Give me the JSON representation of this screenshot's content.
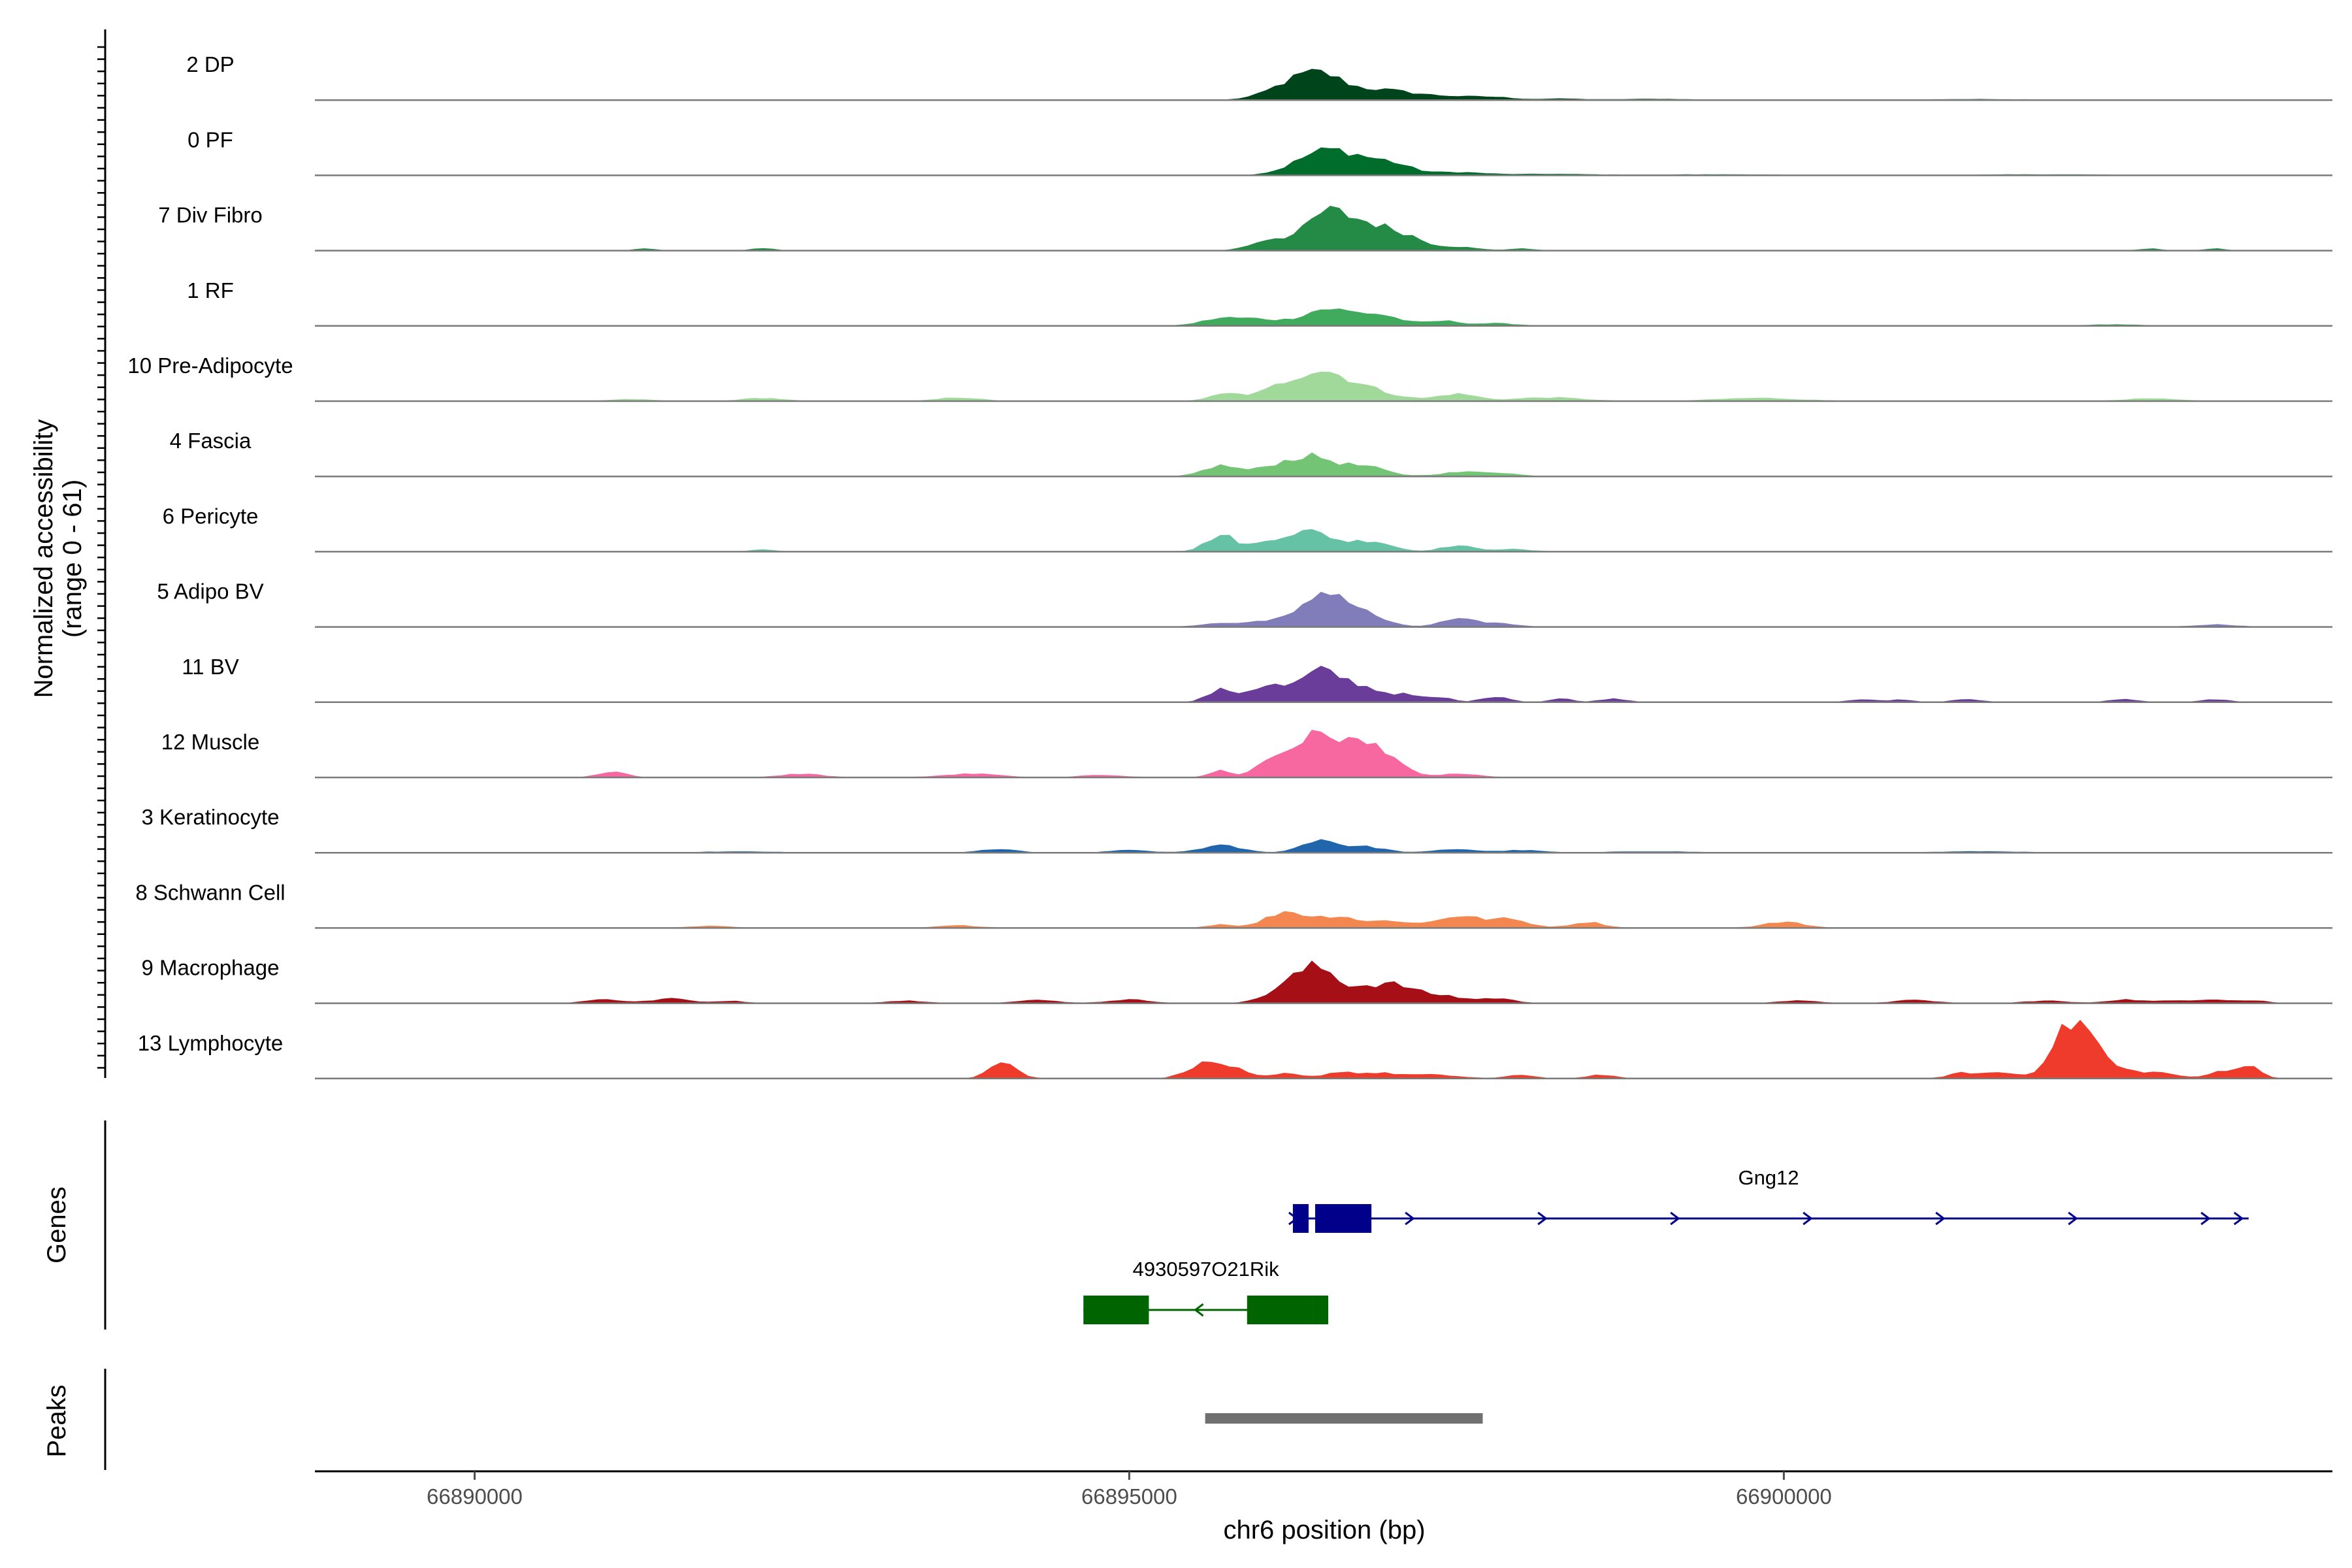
{
  "chart_data": {
    "type": "area",
    "figure": "coverage-plot",
    "ylabel_line1": "Normalized accessibility",
    "ylabel_line2": "(range 0 - 61)",
    "y_range": [
      0,
      61
    ],
    "xlabel": "chr6 position (bp)",
    "x_range": [
      66888780,
      66904190
    ],
    "x_ticks": [
      66890000,
      66895000,
      66900000
    ],
    "x_tick_labels": [
      "66890000",
      "66895000",
      "66900000"
    ],
    "series": [
      {
        "name": "2 DP",
        "color": "#00441b",
        "peaks": [
          [
            66896280,
            15,
            200
          ],
          [
            66896500,
            13,
            160
          ],
          [
            66896900,
            8,
            230
          ],
          [
            66897400,
            3,
            280
          ],
          [
            66897800,
            1.5,
            150
          ],
          [
            66898300,
            1,
            150
          ],
          [
            66899000,
            0.8,
            300
          ],
          [
            66901500,
            0.6,
            400
          ]
        ]
      },
      {
        "name": "0 PF",
        "color": "#006d2c",
        "peaks": [
          [
            66896450,
            17,
            200
          ],
          [
            66896700,
            10,
            180
          ],
          [
            66897000,
            9,
            160
          ],
          [
            66897500,
            2.5,
            200
          ],
          [
            66898200,
            1,
            300
          ],
          [
            66899500,
            0.6,
            500
          ],
          [
            66902000,
            0.6,
            500
          ]
        ]
      },
      {
        "name": "7 Div Fibro",
        "color": "#238b45",
        "peaks": [
          [
            66896500,
            30,
            150
          ],
          [
            66896800,
            20,
            160
          ],
          [
            66897100,
            12,
            150
          ],
          [
            66896100,
            10,
            150
          ],
          [
            66897500,
            3,
            150
          ],
          [
            66898000,
            1.5,
            100
          ],
          [
            66891300,
            1.5,
            80
          ],
          [
            66892200,
            2,
            80
          ],
          [
            66902800,
            1.5,
            80
          ],
          [
            66903300,
            1.5,
            80
          ]
        ]
      },
      {
        "name": "1 RF",
        "color": "#41ab5d",
        "peaks": [
          [
            66896500,
            14,
            180
          ],
          [
            66896900,
            9,
            170
          ],
          [
            66895700,
            6,
            150
          ],
          [
            66896000,
            5,
            150
          ],
          [
            66897400,
            4,
            130
          ],
          [
            66897800,
            2,
            150
          ],
          [
            66902500,
            1,
            200
          ]
        ]
      },
      {
        "name": "10 Pre-Adipocyte",
        "color": "#a1d99b",
        "peaks": [
          [
            66896450,
            24,
            170
          ],
          [
            66896750,
            10,
            150
          ],
          [
            66896150,
            10,
            150
          ],
          [
            66895750,
            6,
            130
          ],
          [
            66897500,
            6,
            150
          ],
          [
            66897000,
            4,
            150
          ],
          [
            66898200,
            3,
            250
          ],
          [
            66899800,
            2.5,
            300
          ],
          [
            66893700,
            3,
            150
          ],
          [
            66892200,
            2.5,
            150
          ],
          [
            66902800,
            2,
            200
          ],
          [
            66891200,
            1.5,
            150
          ]
        ]
      },
      {
        "name": "4 Fascia",
        "color": "#74c476",
        "peaks": [
          [
            66896400,
            16,
            170
          ],
          [
            66896800,
            8,
            160
          ],
          [
            66895700,
            9,
            130
          ],
          [
            66896100,
            7,
            150
          ],
          [
            66897500,
            3,
            150
          ],
          [
            66897800,
            3,
            150
          ]
        ]
      },
      {
        "name": "6 Pericyte",
        "color": "#66c2a4",
        "peaks": [
          [
            66895700,
            14,
            110
          ],
          [
            66896400,
            16,
            170
          ],
          [
            66896850,
            9,
            150
          ],
          [
            66896100,
            8,
            150
          ],
          [
            66897500,
            5,
            120
          ],
          [
            66897900,
            2,
            150
          ],
          [
            66892200,
            2,
            80
          ]
        ]
      },
      {
        "name": "5 Adipo BV",
        "color": "#807dba",
        "peaks": [
          [
            66896500,
            30,
            150
          ],
          [
            66896800,
            10,
            150
          ],
          [
            66896100,
            6,
            150
          ],
          [
            66897500,
            6,
            130
          ],
          [
            66897800,
            3,
            150
          ],
          [
            66895700,
            3,
            150
          ],
          [
            66903300,
            2,
            150
          ]
        ]
      },
      {
        "name": "11 BV",
        "color": "#6a3d9a",
        "peaks": [
          [
            66896450,
            25,
            150
          ],
          [
            66896750,
            12,
            150
          ],
          [
            66896050,
            14,
            140
          ],
          [
            66895700,
            10,
            100
          ],
          [
            66897100,
            6,
            150
          ],
          [
            66897400,
            3,
            80
          ],
          [
            66897800,
            5,
            100
          ],
          [
            66898300,
            3,
            80
          ],
          [
            66898700,
            3,
            100
          ],
          [
            66900600,
            2.5,
            100
          ],
          [
            66901400,
            2.5,
            100
          ],
          [
            66902600,
            2.5,
            100
          ],
          [
            66903300,
            2.5,
            100
          ],
          [
            66900900,
            2,
            80
          ]
        ]
      },
      {
        "name": "12 Muscle",
        "color": "#f768a1",
        "peaks": [
          [
            66896600,
            32,
            200
          ],
          [
            66896300,
            20,
            150
          ],
          [
            66896950,
            18,
            130
          ],
          [
            66896050,
            10,
            100
          ],
          [
            66895700,
            6,
            80
          ],
          [
            66891050,
            5,
            100
          ],
          [
            66892500,
            3,
            150
          ],
          [
            66893800,
            3,
            200
          ],
          [
            66897500,
            3,
            150
          ],
          [
            66894800,
            2,
            150
          ]
        ]
      },
      {
        "name": "3 Keratinocyte",
        "color": "#2166ac",
        "peaks": [
          [
            66896450,
            11,
            130
          ],
          [
            66896800,
            5,
            150
          ],
          [
            66895700,
            6,
            150
          ],
          [
            66897500,
            3,
            150
          ],
          [
            66898000,
            2,
            150
          ],
          [
            66894000,
            3,
            130
          ],
          [
            66895000,
            2,
            150
          ],
          [
            66899000,
            1,
            300
          ],
          [
            66901500,
            1,
            300
          ],
          [
            66892000,
            0.8,
            300
          ]
        ]
      },
      {
        "name": "8 Schwann Cell",
        "color": "#f4874f",
        "peaks": [
          [
            66896200,
            14,
            150
          ],
          [
            66896600,
            10,
            150
          ],
          [
            66897000,
            6,
            130
          ],
          [
            66897500,
            10,
            170
          ],
          [
            66897900,
            7,
            150
          ],
          [
            66898500,
            5,
            120
          ],
          [
            66900000,
            5,
            150
          ],
          [
            66895700,
            3,
            100
          ],
          [
            66893700,
            2,
            150
          ],
          [
            66891800,
            1.5,
            150
          ]
        ]
      },
      {
        "name": "9 Macrophage",
        "color": "#a50f15",
        "peaks": [
          [
            66896450,
            28,
            150
          ],
          [
            66896200,
            12,
            150
          ],
          [
            66896800,
            10,
            130
          ],
          [
            66897050,
            14,
            150
          ],
          [
            66897400,
            6,
            150
          ],
          [
            66897800,
            4,
            130
          ],
          [
            66891000,
            3,
            150
          ],
          [
            66891500,
            4,
            130
          ],
          [
            66891950,
            2,
            100
          ],
          [
            66893300,
            2,
            150
          ],
          [
            66894300,
            2.5,
            150
          ],
          [
            66895000,
            3,
            150
          ],
          [
            66900100,
            2,
            150
          ],
          [
            66901000,
            2.5,
            150
          ],
          [
            66902000,
            2,
            150
          ],
          [
            66902600,
            3,
            130
          ],
          [
            66903000,
            2,
            150
          ],
          [
            66903300,
            3,
            130
          ],
          [
            66903600,
            2,
            100
          ]
        ]
      },
      {
        "name": "13 Lymphocyte",
        "color": "#ef3b2c",
        "peaks": [
          [
            66894020,
            14,
            90
          ],
          [
            66895700,
            12,
            150
          ],
          [
            66895500,
            6,
            100
          ],
          [
            66896600,
            5,
            120
          ],
          [
            66896900,
            4,
            150
          ],
          [
            66897300,
            3,
            200
          ],
          [
            66896200,
            4,
            100
          ],
          [
            66894100,
            3,
            100
          ],
          [
            66898000,
            3,
            100
          ],
          [
            66898600,
            3,
            100
          ],
          [
            66902230,
            44,
            130
          ],
          [
            66902050,
            12,
            80
          ],
          [
            66902400,
            10,
            120
          ],
          [
            66901650,
            5,
            150
          ],
          [
            66901350,
            4,
            100
          ],
          [
            66902650,
            5,
            130
          ],
          [
            66902900,
            4,
            120
          ],
          [
            66903350,
            6,
            100
          ],
          [
            66903550,
            10,
            90
          ]
        ]
      }
    ],
    "genes_label": "Genes",
    "genes": [
      {
        "name": "Gng12",
        "strand": "+",
        "color": "#00008b",
        "start": 66896250,
        "end": 66903550,
        "exons": [
          [
            66896250,
            66896370
          ],
          [
            66896420,
            66896850
          ]
        ]
      },
      {
        "name": "4930597O21Rik",
        "strand": "-",
        "color": "#006400",
        "start": 66894650,
        "end": 66896520,
        "exons": [
          [
            66894650,
            66895150
          ],
          [
            66895900,
            66896400
          ],
          [
            66896400,
            66896520
          ]
        ]
      }
    ],
    "peaks_label": "Peaks",
    "peak_regions": [
      {
        "start": 66895580,
        "end": 66897700,
        "color": "#707070"
      }
    ]
  }
}
